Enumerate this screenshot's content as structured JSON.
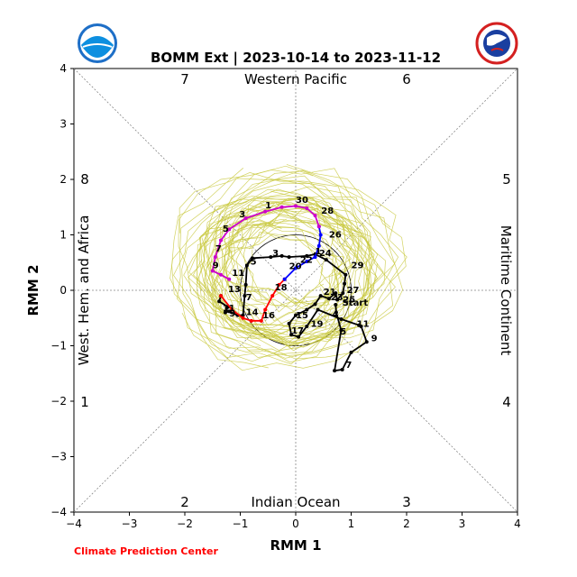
{
  "chart_data": {
    "type": "line",
    "title": "BOMM Ext | 2023-10-14 to 2023-11-12",
    "xlabel": "RMM 1",
    "ylabel": "RMM 2",
    "xlim": [
      -4,
      4
    ],
    "ylim": [
      -4,
      4
    ],
    "x_ticks": [
      "−4",
      "−3",
      "−2",
      "−1",
      "0",
      "1",
      "2",
      "3",
      "4"
    ],
    "y_ticks": [
      "−4",
      "−3",
      "−2",
      "−1",
      "0",
      "1",
      "2",
      "3",
      "4"
    ],
    "regions": {
      "top": "Western Pacific",
      "bottom": "Indian Ocean",
      "left": "West. Hem. and Africa",
      "right": "Maritime Continent"
    },
    "phase_numbers": [
      "7",
      "6",
      "8",
      "5",
      "1",
      "4",
      "2",
      "3"
    ],
    "unit_circle_radius": 1,
    "start_label": "Start",
    "footer": "Climate Prediction Center",
    "colors": {
      "observed": "#000000",
      "segment_a": "#ff0000",
      "segment_b": "#0000ff",
      "segment_c": "#cc00cc",
      "ensemble": "#c8c83c",
      "footer": "#ff0000"
    },
    "series": [
      {
        "color_key": "observed",
        "points": [
          [
            0.72,
            -0.26
          ],
          [
            0.73,
            -0.4
          ],
          [
            0.82,
            -0.72
          ],
          [
            0.7,
            -1.45
          ],
          [
            0.84,
            -1.43
          ],
          [
            1.0,
            -1.12
          ],
          [
            1.28,
            -0.93
          ],
          [
            1.18,
            -0.65
          ],
          [
            1.14,
            -0.63
          ],
          [
            0.82,
            -0.52
          ],
          [
            0.4,
            -0.35
          ],
          [
            0.2,
            -0.65
          ],
          [
            0.05,
            -0.84
          ],
          [
            -0.08,
            -0.8
          ],
          [
            -0.12,
            -0.6
          ],
          [
            0.0,
            -0.45
          ],
          [
            0.2,
            -0.35
          ],
          [
            0.35,
            -0.25
          ],
          [
            0.45,
            -0.1
          ],
          [
            0.6,
            -0.15
          ],
          [
            0.72,
            -0.05
          ],
          [
            0.75,
            -0.17
          ],
          [
            0.85,
            -0.05
          ],
          [
            0.88,
            0.12
          ],
          [
            0.9,
            0.28
          ],
          [
            0.55,
            0.55
          ],
          [
            0.35,
            0.65
          ],
          [
            0.2,
            0.62
          ],
          [
            -0.12,
            0.6
          ],
          [
            -0.25,
            0.62
          ],
          [
            -0.45,
            0.6
          ],
          [
            -0.78,
            0.58
          ],
          [
            -0.88,
            0.45
          ],
          [
            -0.9,
            0.1
          ],
          [
            -0.92,
            -0.1
          ],
          [
            -0.95,
            -0.45
          ],
          [
            -1.05,
            -0.45
          ],
          [
            -1.2,
            -0.38
          ],
          [
            -1.27,
            -0.4
          ],
          [
            -1.22,
            -0.3
          ],
          [
            -1.38,
            -0.2
          ],
          [
            -1.35,
            -0.1
          ]
        ],
        "labels": [
          {
            "text": "Start",
            "at": [
              0.84,
              -0.28
            ]
          },
          {
            "text": "1",
            "at": [
              0.35,
              0.65
            ]
          },
          {
            "text": "3",
            "at": [
              -0.42,
              0.62
            ]
          },
          {
            "text": "5",
            "at": [
              -0.82,
              0.46
            ]
          },
          {
            "text": "7",
            "at": [
              -0.9,
              -0.18
            ]
          },
          {
            "text": "9",
            "at": [
              -1.2,
              -0.47
            ]
          },
          {
            "text": "11",
            "at": [
              -1.32,
              -0.37
            ]
          },
          {
            "text": "13",
            "at": [
              -1.22,
              -0.03
            ]
          },
          {
            "text": "15",
            "at": [
              0.0,
              -0.5
            ]
          },
          {
            "text": "17",
            "at": [
              -0.08,
              -0.78
            ]
          },
          {
            "text": "19",
            "at": [
              0.27,
              -0.66
            ]
          },
          {
            "text": "21",
            "at": [
              0.5,
              -0.08
            ]
          },
          {
            "text": "23",
            "at": [
              0.63,
              -0.18
            ]
          },
          {
            "text": "25",
            "at": [
              0.85,
              -0.22
            ]
          },
          {
            "text": "27",
            "at": [
              0.92,
              -0.05
            ]
          },
          {
            "text": "29",
            "at": [
              1.0,
              0.4
            ]
          },
          {
            "text": "4",
            "at": [
              0.66,
              -0.48
            ]
          },
          {
            "text": "5",
            "at": [
              0.8,
              -0.8
            ]
          },
          {
            "text": "7",
            "at": [
              0.9,
              -1.4
            ]
          },
          {
            "text": "9",
            "at": [
              1.36,
              -0.92
            ]
          },
          {
            "text": "11",
            "at": [
              1.1,
              -0.66
            ]
          }
        ]
      },
      {
        "color_key": "segment_a",
        "points": [
          [
            -1.35,
            -0.1
          ],
          [
            -1.15,
            -0.35
          ],
          [
            -0.95,
            -0.5
          ],
          [
            -0.8,
            -0.55
          ],
          [
            -0.62,
            -0.55
          ],
          [
            -0.55,
            -0.35
          ],
          [
            -0.42,
            -0.1
          ],
          [
            -0.3,
            0.1
          ],
          [
            -0.2,
            0.2
          ]
        ],
        "labels": [
          {
            "text": "14",
            "at": [
              -0.9,
              -0.45
            ]
          },
          {
            "text": "16",
            "at": [
              -0.6,
              -0.5
            ]
          },
          {
            "text": "18",
            "at": [
              -0.38,
              0.0
            ]
          },
          {
            "text": "20",
            "at": [
              -0.12,
              0.38
            ]
          }
        ]
      },
      {
        "color_key": "segment_b",
        "points": [
          [
            -0.2,
            0.2
          ],
          [
            0.0,
            0.4
          ],
          [
            0.2,
            0.52
          ],
          [
            0.35,
            0.6
          ],
          [
            0.42,
            0.8
          ],
          [
            0.45,
            1.0
          ],
          [
            0.42,
            1.15
          ]
        ],
        "labels": [
          {
            "text": "22",
            "at": [
              0.08,
              0.5
            ]
          },
          {
            "text": "24",
            "at": [
              0.42,
              0.62
            ]
          },
          {
            "text": "26",
            "at": [
              0.6,
              0.95
            ]
          }
        ]
      },
      {
        "color_key": "segment_c",
        "points": [
          [
            0.42,
            1.15
          ],
          [
            0.35,
            1.35
          ],
          [
            0.2,
            1.48
          ],
          [
            0.0,
            1.52
          ],
          [
            -0.25,
            1.5
          ],
          [
            -0.55,
            1.42
          ],
          [
            -0.9,
            1.3
          ],
          [
            -1.2,
            1.1
          ],
          [
            -1.35,
            0.9
          ],
          [
            -1.45,
            0.6
          ],
          [
            -1.5,
            0.35
          ],
          [
            -1.35,
            0.28
          ],
          [
            -1.2,
            0.2
          ]
        ],
        "labels": [
          {
            "text": "28",
            "at": [
              0.46,
              1.38
            ]
          },
          {
            "text": "30",
            "at": [
              0.0,
              1.58
            ]
          },
          {
            "text": "1",
            "at": [
              -0.55,
              1.48
            ]
          },
          {
            "text": "3",
            "at": [
              -1.02,
              1.32
            ]
          },
          {
            "text": "5",
            "at": [
              -1.32,
              1.06
            ]
          },
          {
            "text": "7",
            "at": [
              -1.45,
              0.7
            ]
          },
          {
            "text": "9",
            "at": [
              -1.5,
              0.4
            ]
          },
          {
            "text": "11",
            "at": [
              -1.15,
              0.26
            ]
          }
        ]
      }
    ]
  }
}
